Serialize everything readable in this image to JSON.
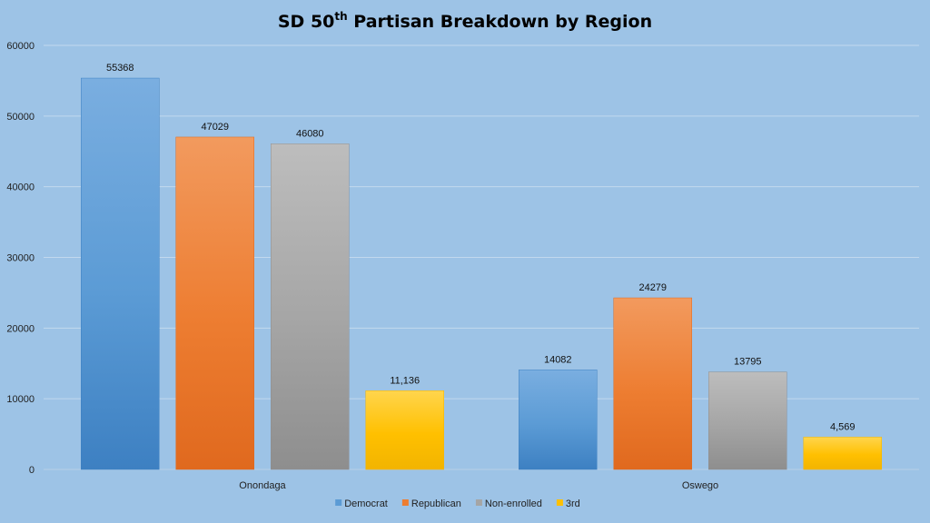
{
  "chart_data": {
    "type": "bar",
    "title": "SD 50",
    "title_superscript": "th",
    "title_rest": " Partisan  Breakdown  by  Region",
    "categories": [
      "Onondaga",
      "Oswego"
    ],
    "series": [
      {
        "name": "Democrat",
        "values": [
          55368,
          14082
        ],
        "labels": [
          "55368",
          "14082"
        ],
        "color": "#5b9bd5",
        "color_dark": "#3d80c2",
        "color_light": "#7aaee0"
      },
      {
        "name": "Republican",
        "values": [
          47029,
          24279
        ],
        "labels": [
          "47029",
          "24279"
        ],
        "color": "#ed7d31",
        "color_dark": "#e0691e",
        "color_light": "#f29a5e"
      },
      {
        "name": "Non-enrolled",
        "values": [
          46080,
          13795
        ],
        "labels": [
          "46080",
          "13795"
        ],
        "color": "#a5a5a5",
        "color_dark": "#8e8e8e",
        "color_light": "#bdbdbd"
      },
      {
        "name": "3rd",
        "values": [
          11136,
          4569
        ],
        "labels": [
          "11,136",
          "4,569"
        ],
        "color": "#ffc000",
        "color_dark": "#f2b400",
        "color_light": "#ffd54d"
      }
    ],
    "ylim": [
      0,
      60000
    ],
    "yticks": [
      "0",
      "10000",
      "20000",
      "30000",
      "40000",
      "50000",
      "60000"
    ],
    "grid": true,
    "legend_position": "bottom",
    "xlabel": "",
    "ylabel": ""
  },
  "colors": {
    "background": "#9dc3e6",
    "gridline": "#c2d8ee",
    "axis": "#b8cfe6"
  }
}
